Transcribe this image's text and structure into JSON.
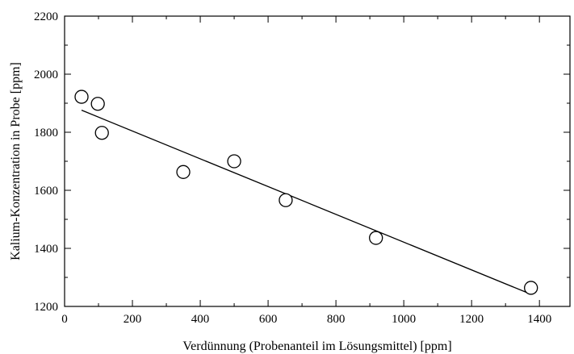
{
  "chart_data": {
    "type": "scatter",
    "title": "",
    "xlabel": "Verdünnung (Probenanteil im Lösungsmittel) [ppm]",
    "ylabel": "Kalium-Konzentration in Probe [ppm]",
    "xlim": [
      0,
      1490
    ],
    "ylim": [
      1200,
      2200
    ],
    "x_ticks": [
      0,
      200,
      400,
      600,
      800,
      1000,
      1200,
      1400
    ],
    "y_ticks": [
      1200,
      1400,
      1600,
      1800,
      2000,
      2200
    ],
    "grid": false,
    "legend": "none",
    "series": [
      {
        "type": "scatter",
        "marker": "open-circle",
        "points": [
          {
            "x": 50,
            "y": 1922
          },
          {
            "x": 98,
            "y": 1898
          },
          {
            "x": 110,
            "y": 1798
          },
          {
            "x": 350,
            "y": 1663
          },
          {
            "x": 500,
            "y": 1700
          },
          {
            "x": 652,
            "y": 1566
          },
          {
            "x": 918,
            "y": 1436
          },
          {
            "x": 1375,
            "y": 1264
          }
        ]
      },
      {
        "type": "line",
        "points": [
          {
            "x": 50,
            "y": 1876
          },
          {
            "x": 1375,
            "y": 1242
          }
        ]
      }
    ]
  }
}
